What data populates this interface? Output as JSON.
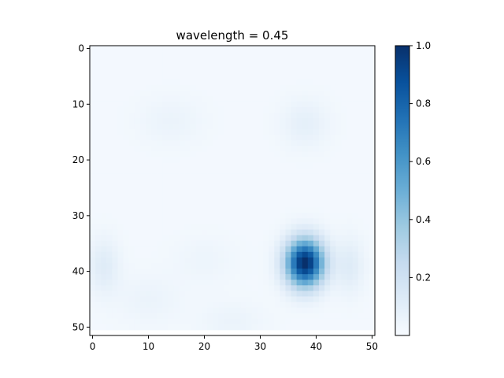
{
  "chart_data": {
    "type": "heatmap",
    "title": "wavelength = 0.45",
    "xlabel": "",
    "ylabel": "",
    "grid_size": [
      51,
      51
    ],
    "xlim": [
      -0.5,
      50.5
    ],
    "ylim": [
      51.5,
      -0.5
    ],
    "x_ticks": [
      0,
      10,
      20,
      30,
      40,
      50
    ],
    "x_tick_labels": [
      "0",
      "10",
      "20",
      "30",
      "40",
      "50"
    ],
    "y_ticks": [
      0,
      10,
      20,
      30,
      40,
      50
    ],
    "y_tick_labels": [
      "0",
      "10",
      "20",
      "30",
      "40",
      "50"
    ],
    "colormap": "Blues",
    "colorbar": {
      "range": [
        0.0,
        1.0
      ],
      "ticks": [
        0.2,
        0.4,
        0.6,
        0.8,
        1.0
      ],
      "tick_labels": [
        "0.2",
        "0.4",
        "0.6",
        "0.8",
        "1.0"
      ]
    },
    "features": [
      {
        "x": 38,
        "y": 38.5,
        "peak": 1.0,
        "sx": 2.4,
        "sy": 3.0
      },
      {
        "x": 2,
        "y": 39,
        "peak": 0.1,
        "sx": 2.0,
        "sy": 3.5
      },
      {
        "x": 46,
        "y": 39,
        "peak": 0.1,
        "sx": 1.8,
        "sy": 3.5
      },
      {
        "x": 38,
        "y": 13.5,
        "peak": 0.07,
        "sx": 3.0,
        "sy": 3.0
      },
      {
        "x": 10,
        "y": 45,
        "peak": 0.04,
        "sx": 4.0,
        "sy": 3.0
      },
      {
        "x": 25,
        "y": 49,
        "peak": 0.04,
        "sx": 4.0,
        "sy": 2.5
      },
      {
        "x": 14,
        "y": 13,
        "peak": 0.04,
        "sx": 4.0,
        "sy": 3.0
      },
      {
        "x": 20,
        "y": 38,
        "peak": 0.03,
        "sx": 4.0,
        "sy": 3.0
      }
    ],
    "background": 0.02
  }
}
